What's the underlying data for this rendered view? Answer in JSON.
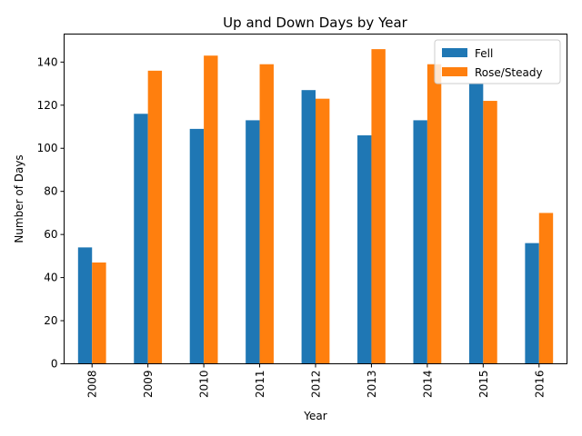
{
  "chart_data": {
    "type": "bar",
    "title": "Up and Down Days by Year",
    "xlabel": "Year",
    "ylabel": "Number of Days",
    "categories": [
      "2008",
      "2009",
      "2010",
      "2011",
      "2012",
      "2013",
      "2014",
      "2015",
      "2016"
    ],
    "series": [
      {
        "name": "Fell",
        "color": "#1f77b4",
        "values": [
          54,
          116,
          109,
          113,
          127,
          106,
          113,
          130,
          56
        ]
      },
      {
        "name": "Rose/Steady",
        "color": "#ff7f0e",
        "values": [
          47,
          136,
          143,
          139,
          123,
          146,
          139,
          122,
          70
        ]
      }
    ],
    "ylim": [
      0,
      153
    ],
    "yticks": [
      0,
      20,
      40,
      60,
      80,
      100,
      120,
      140
    ],
    "legend": "top-right",
    "grid": false,
    "xtick_rotation": 90
  }
}
